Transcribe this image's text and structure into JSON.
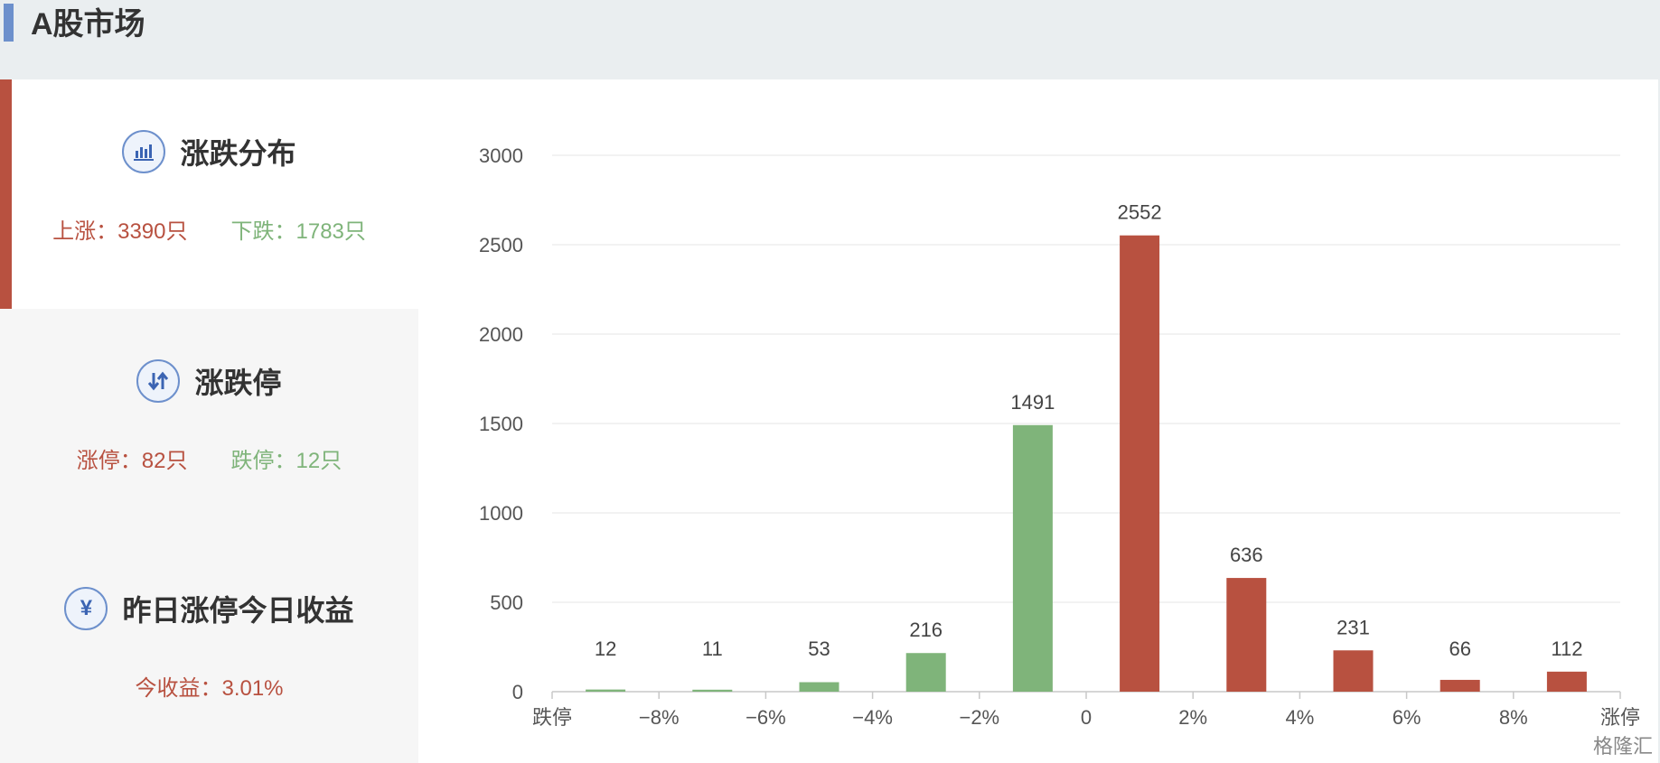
{
  "header": {
    "title": "A股市场"
  },
  "sections": [
    {
      "title": "涨跌分布",
      "icon": "bar-chart-icon",
      "stats": [
        {
          "label": "上涨：3390只",
          "color": "red"
        },
        {
          "label": "下跌：1783只",
          "color": "green"
        }
      ]
    },
    {
      "title": "涨跌停",
      "icon": "up-down-arrows-icon",
      "stats": [
        {
          "label": "涨停：82只",
          "color": "red"
        },
        {
          "label": "跌停：12只",
          "color": "green"
        }
      ]
    },
    {
      "title": "昨日涨停今日收益",
      "icon": "yen-icon",
      "icon_glyph": "¥",
      "stats": [
        {
          "label": "今收益：3.01%",
          "color": "red"
        }
      ]
    }
  ],
  "watermark": "格隆汇",
  "colors": {
    "up": "#b85140",
    "down": "#7fb47a",
    "accent": "#6d90cc"
  },
  "chart_data": {
    "type": "bar",
    "ylim": [
      0,
      3000
    ],
    "y_ticks": [
      0,
      500,
      1000,
      1500,
      2000,
      2500,
      3000
    ],
    "grid": true,
    "x_tick_labels": [
      "跌停",
      "−8%",
      "−6%",
      "−4%",
      "−2%",
      "0",
      "2%",
      "4%",
      "6%",
      "8%",
      "涨停"
    ],
    "values": [
      12,
      11,
      53,
      216,
      1491,
      2552,
      636,
      231,
      66,
      112
    ],
    "bar_colors": [
      "down",
      "down",
      "down",
      "down",
      "down",
      "up",
      "up",
      "up",
      "up",
      "up"
    ]
  }
}
